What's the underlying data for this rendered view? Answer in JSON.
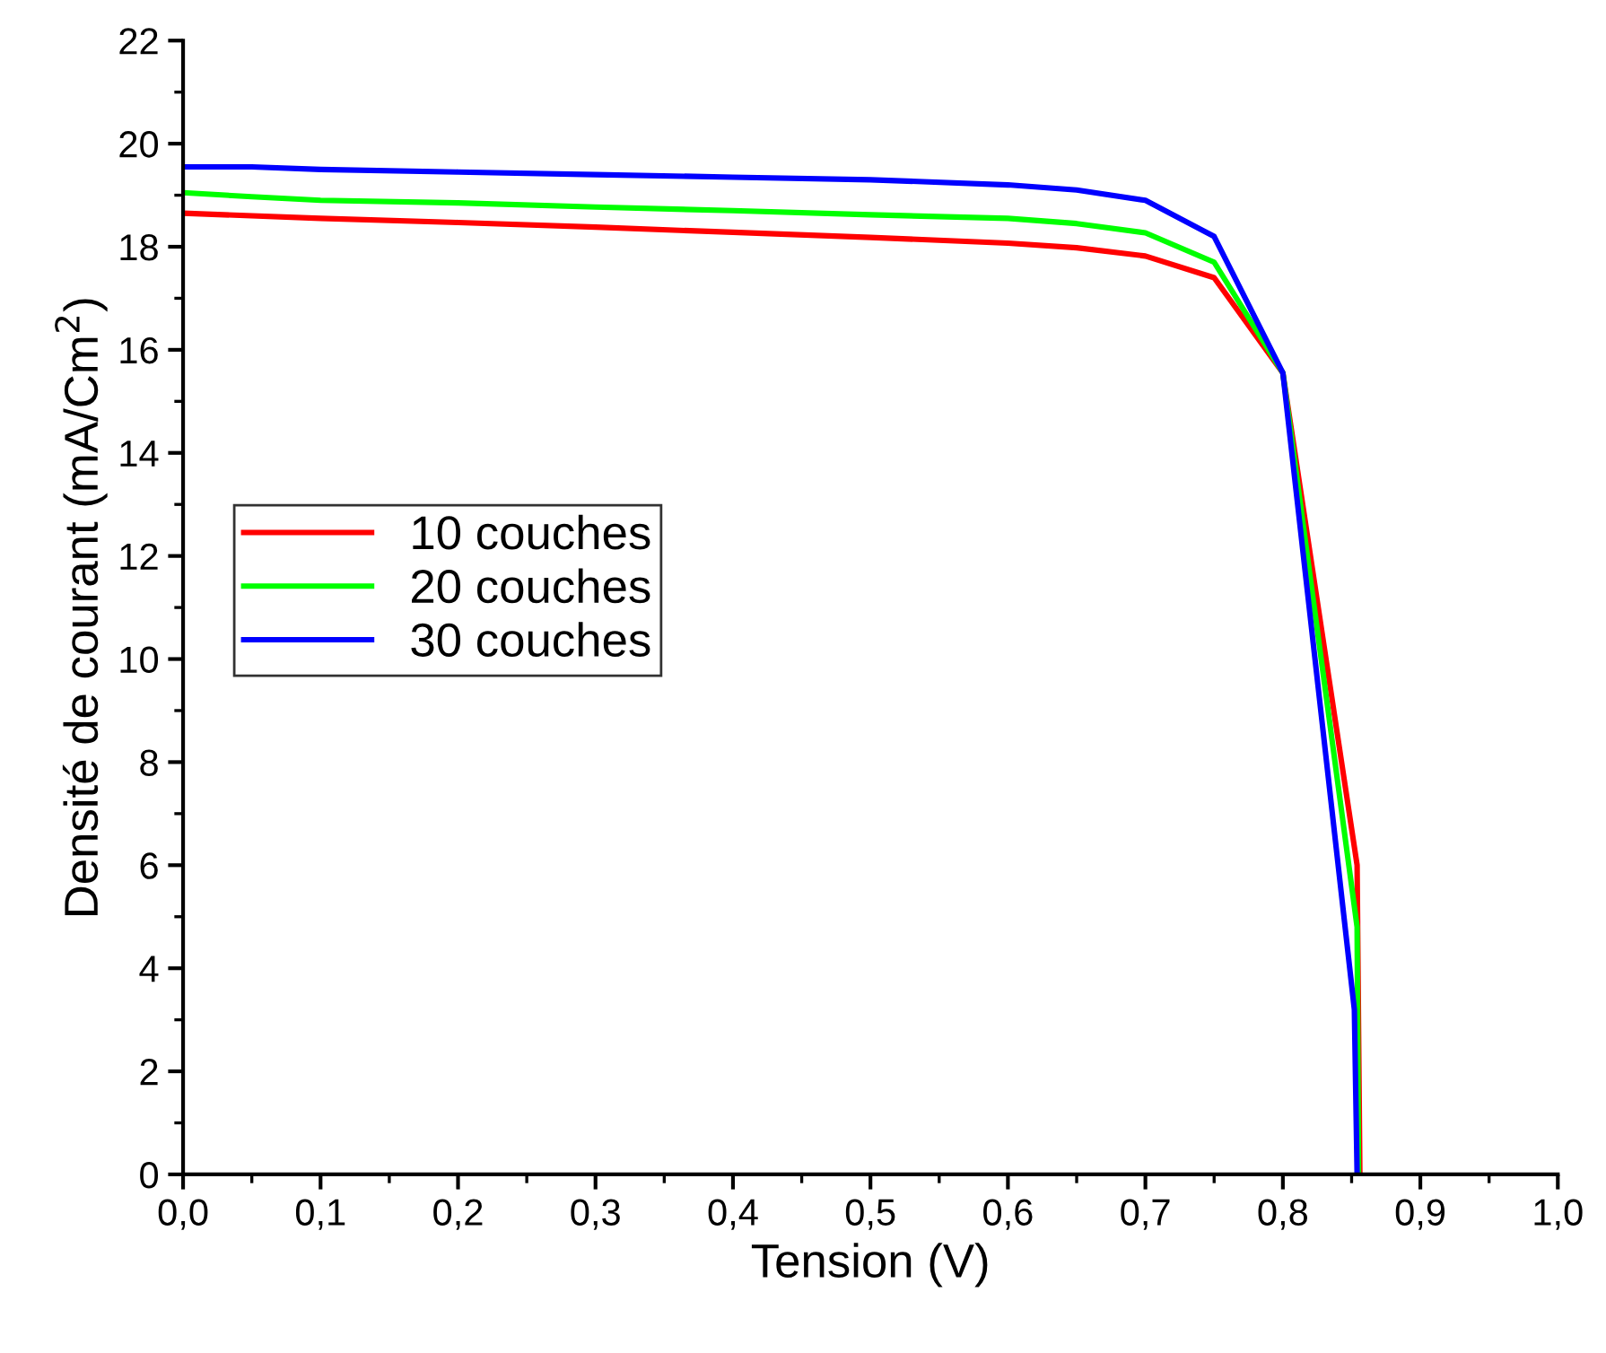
{
  "chart_data": {
    "type": "line",
    "xlabel": "Tension (V)",
    "ylabel": "Densité de courant (mA/Cm$^{2}$)",
    "xlim": [
      0,
      1
    ],
    "ylim": [
      0,
      22
    ],
    "xticks": [
      {
        "value": 0,
        "label": "0,0"
      },
      {
        "value": 0.1,
        "label": "0,1"
      },
      {
        "value": 0.2,
        "label": "0,2"
      },
      {
        "value": 0.3,
        "label": "0,3"
      },
      {
        "value": 0.4,
        "label": "0,4"
      },
      {
        "value": 0.5,
        "label": "0,5"
      },
      {
        "value": 0.6,
        "label": "0,6"
      },
      {
        "value": 0.7,
        "label": "0,7"
      },
      {
        "value": 0.8,
        "label": "0,8"
      },
      {
        "value": 0.9,
        "label": "0,9"
      },
      {
        "value": 1,
        "label": "1,0"
      }
    ],
    "yticks": [
      0,
      2,
      4,
      6,
      8,
      10,
      12,
      14,
      16,
      18,
      20,
      22
    ],
    "grid": false,
    "legend": "left",
    "marker": "none",
    "line_style": "solid",
    "series": [
      {
        "name": "10 couches",
        "color": "#ff0000",
        "x": [
          0,
          0.1,
          0.2,
          0.3,
          0.4,
          0.5,
          0.6,
          0.65,
          0.7,
          0.75,
          0.8,
          0.854,
          0.856
        ],
        "values": [
          18.65,
          18.55,
          18.47,
          18.38,
          18.28,
          18.18,
          18.07,
          17.98,
          17.82,
          17.4,
          15.55,
          6.0,
          0
        ]
      },
      {
        "name": "20 couches",
        "color": "#00ff00",
        "x": [
          0,
          0.05,
          0.1,
          0.2,
          0.3,
          0.4,
          0.5,
          0.6,
          0.65,
          0.7,
          0.75,
          0.8,
          0.854,
          0.855
        ],
        "values": [
          19.05,
          18.97,
          18.9,
          18.85,
          18.77,
          18.7,
          18.62,
          18.55,
          18.45,
          18.27,
          17.7,
          15.55,
          4.8,
          0
        ]
      },
      {
        "name": "30 couches",
        "color": "#0000ff",
        "x": [
          0,
          0.05,
          0.1,
          0.2,
          0.3,
          0.4,
          0.5,
          0.6,
          0.65,
          0.7,
          0.75,
          0.8,
          0.852,
          0.854
        ],
        "values": [
          19.55,
          19.55,
          19.5,
          19.45,
          19.4,
          19.35,
          19.3,
          19.2,
          19.1,
          18.9,
          18.2,
          15.55,
          3.2,
          0
        ]
      }
    ]
  }
}
